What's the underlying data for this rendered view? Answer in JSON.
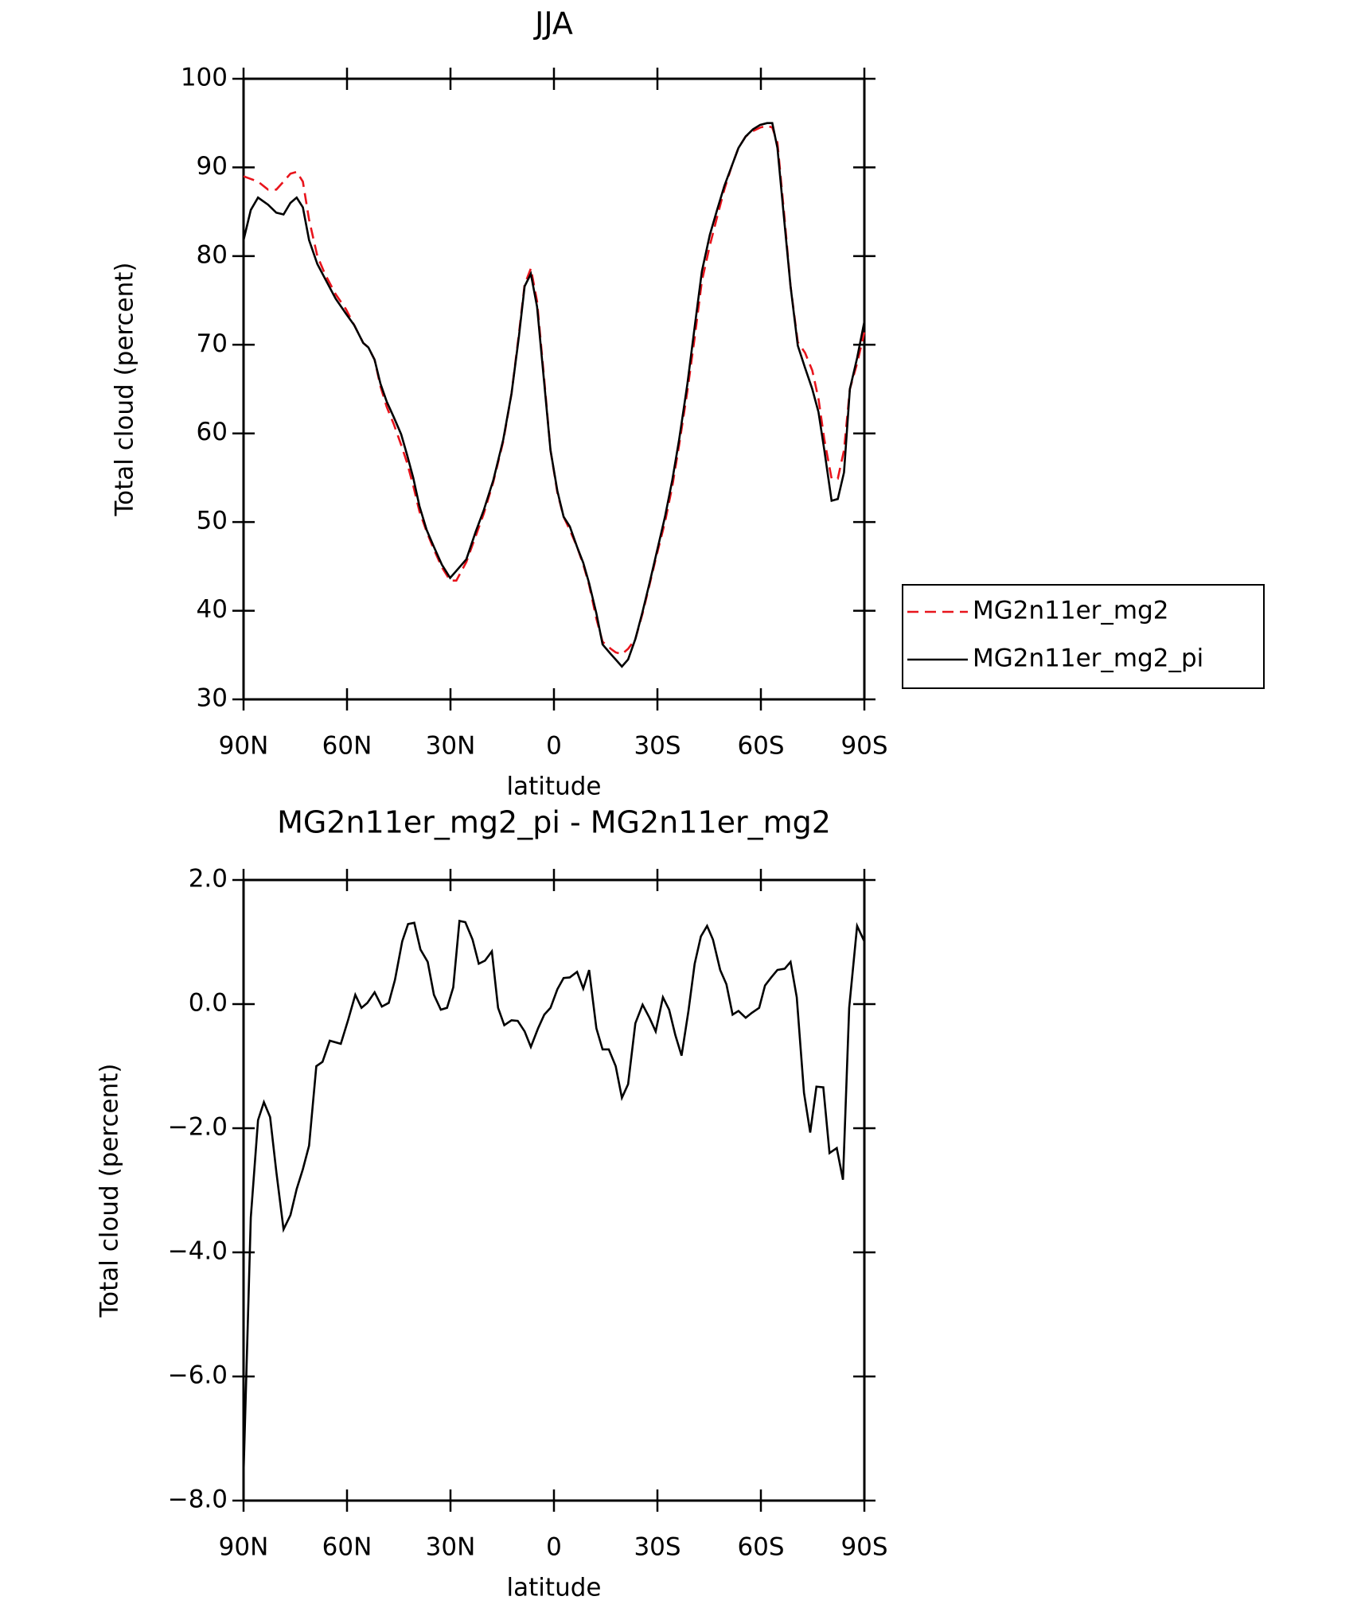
{
  "chart_data": [
    {
      "type": "line",
      "title": "JJA",
      "x_label": "latitude",
      "y_label": "Total cloud (percent)",
      "xlim": [
        90,
        -90
      ],
      "xticks": [
        {
          "value": 90,
          "label": "90N"
        },
        {
          "value": 60,
          "label": "60N"
        },
        {
          "value": 30,
          "label": "30N"
        },
        0,
        {
          "value": -30,
          "label": "30S"
        },
        {
          "value": -60,
          "label": "60S"
        },
        {
          "value": -90,
          "label": "90S"
        }
      ],
      "ylim": [
        30,
        100
      ],
      "yticks": [
        30,
        40,
        50,
        60,
        70,
        80,
        90,
        100
      ],
      "legend": "right",
      "x": [
        90,
        87.9,
        85.8,
        82.9,
        80.5,
        78.4,
        76.4,
        74.6,
        72.8,
        71.0,
        68.6,
        66.3,
        63.3,
        60.3,
        57.9,
        55.3,
        53.8,
        52.0,
        50.3,
        48.5,
        46.4,
        44.3,
        42.6,
        40.8,
        39.0,
        36.9,
        34.8,
        32.5,
        30.1,
        28.3,
        25.4,
        22.7,
        20.3,
        17.6,
        14.7,
        12.3,
        10.2,
        8.5,
        6.7,
        4.9,
        2.8,
        1.0,
        -1.0,
        -2.8,
        -4.6,
        -6.7,
        -8.5,
        -10.2,
        -12.3,
        -14.1,
        -16.5,
        -17.9,
        -19.7,
        -21.5,
        -23.6,
        -25.7,
        -27.7,
        -29.8,
        -32.2,
        -34.3,
        -36.3,
        -38.7,
        -40.8,
        -42.9,
        -45.2,
        -47.3,
        -49.4,
        -51.5,
        -53.5,
        -55.6,
        -57.7,
        -59.8,
        -61.8,
        -63.3,
        -64.8,
        -66.9,
        -68.6,
        -70.7,
        -72.8,
        -74.9,
        -76.7,
        -78.4,
        -80.5,
        -82.3,
        -84.1,
        -85.8,
        -87.9,
        -90
      ],
      "series": [
        {
          "name": "MG2n11er_mg2",
          "color": "#e8141c",
          "dashed": true,
          "values": [
            89.0,
            88.7,
            88.4,
            87.5,
            87.5,
            88.4,
            89.3,
            89.5,
            88.4,
            84.1,
            80.0,
            77.9,
            75.7,
            74.0,
            72.2,
            70.2,
            69.7,
            68.3,
            65.3,
            63.0,
            61.0,
            58.7,
            56.7,
            54.1,
            51.2,
            48.9,
            46.9,
            44.9,
            43.4,
            43.4,
            45.5,
            48.4,
            51.0,
            54.5,
            59.1,
            64.5,
            71.1,
            76.8,
            78.6,
            74.9,
            66.0,
            58.1,
            53.3,
            50.6,
            49.1,
            47.2,
            45.2,
            42.9,
            39.1,
            36.5,
            35.7,
            35.3,
            35.1,
            35.7,
            36.8,
            39.7,
            42.9,
            46.3,
            50.0,
            54.0,
            58.7,
            64.8,
            70.8,
            77.2,
            81.2,
            84.4,
            87.5,
            90.1,
            92.2,
            93.5,
            94.1,
            94.5,
            94.7,
            94.5,
            92.8,
            84.1,
            76.6,
            70.3,
            69.1,
            67.1,
            63.9,
            59.3,
            54.9,
            54.9,
            58.1,
            65.0,
            67.9,
            71.4
          ]
        },
        {
          "name": "MG2n11er_mg2_pi",
          "color": "#000000",
          "dashed": false,
          "values": [
            81.8,
            85.2,
            86.6,
            85.8,
            84.9,
            84.7,
            86.0,
            86.6,
            85.5,
            81.8,
            79.1,
            77.4,
            75.2,
            73.5,
            72.2,
            70.2,
            69.7,
            68.3,
            65.6,
            63.6,
            61.8,
            59.9,
            57.6,
            55.0,
            51.8,
            49.1,
            47.2,
            45.2,
            43.7,
            44.5,
            45.8,
            48.9,
            51.4,
            54.7,
            59.3,
            64.5,
            70.8,
            76.6,
            78.0,
            74.3,
            65.6,
            58.1,
            53.5,
            50.6,
            49.5,
            47.2,
            45.4,
            43.1,
            39.7,
            36.2,
            35.1,
            34.5,
            33.7,
            34.5,
            36.8,
            39.9,
            43.1,
            46.6,
            50.6,
            54.7,
            59.3,
            65.6,
            72.0,
            78.3,
            82.4,
            85.2,
            87.9,
            90.1,
            92.2,
            93.5,
            94.3,
            94.8,
            95.0,
            95.0,
            92.2,
            83.5,
            76.6,
            69.9,
            67.4,
            65.0,
            62.4,
            58.1,
            52.4,
            52.6,
            55.6,
            65.0,
            68.5,
            72.6
          ]
        }
      ]
    },
    {
      "type": "line",
      "title": "MG2n11er_mg2_pi - MG2n11er_mg2",
      "x_label": "latitude",
      "y_label": "Total cloud (percent)",
      "xlim": [
        90,
        -90
      ],
      "xticks": [
        {
          "value": 90,
          "label": "90N"
        },
        {
          "value": 60,
          "label": "60N"
        },
        {
          "value": 30,
          "label": "30N"
        },
        0,
        {
          "value": -30,
          "label": "30S"
        },
        {
          "value": -60,
          "label": "60S"
        },
        {
          "value": -90,
          "label": "90S"
        }
      ],
      "ylim": [
        -8,
        2
      ],
      "yticks": [
        {
          "value": -8,
          "label": "−8.0"
        },
        {
          "value": -6,
          "label": "−6.0"
        },
        {
          "value": -4,
          "label": "−4.0"
        },
        {
          "value": -2,
          "label": "−2.0"
        },
        {
          "value": 0,
          "label": "0.0"
        },
        {
          "value": 2,
          "label": "2.0"
        }
      ],
      "x": [
        90,
        87.9,
        85.8,
        84.1,
        82.3,
        80.5,
        78.4,
        76.4,
        74.6,
        72.8,
        71.0,
        68.9,
        67.1,
        65.0,
        61.8,
        59.7,
        57.6,
        55.8,
        54.1,
        52.0,
        49.9,
        47.9,
        46.1,
        44.0,
        42.3,
        40.5,
        38.7,
        36.6,
        34.8,
        32.8,
        31.0,
        29.2,
        27.4,
        25.7,
        23.6,
        21.8,
        20.0,
        18.0,
        16.2,
        14.4,
        12.3,
        10.5,
        8.5,
        6.7,
        4.6,
        2.8,
        1.0,
        -1.0,
        -2.8,
        -4.6,
        -6.7,
        -8.5,
        -10.2,
        -12.3,
        -14.1,
        -15.9,
        -17.9,
        -19.7,
        -21.5,
        -23.6,
        -25.7,
        -27.7,
        -29.5,
        -31.6,
        -33.4,
        -35.2,
        -37.0,
        -39.0,
        -40.8,
        -42.6,
        -44.4,
        -46.1,
        -48.2,
        -50.0,
        -51.8,
        -53.5,
        -55.6,
        -57.4,
        -59.5,
        -61.2,
        -63.0,
        -64.8,
        -66.9,
        -68.6,
        -70.4,
        -72.5,
        -74.3,
        -76.1,
        -78.1,
        -79.9,
        -82.0,
        -83.8,
        -85.6,
        -87.9,
        -90
      ],
      "series": [
        {
          "color": "#000000",
          "dashed": false,
          "values": [
            -7.56,
            -3.44,
            -1.87,
            -1.58,
            -1.82,
            -2.7,
            -3.63,
            -3.4,
            -2.98,
            -2.66,
            -2.28,
            -1.0,
            -0.93,
            -0.59,
            -0.64,
            -0.26,
            0.15,
            -0.06,
            0.02,
            0.19,
            -0.04,
            0.02,
            0.39,
            1.01,
            1.29,
            1.31,
            0.88,
            0.68,
            0.15,
            -0.09,
            -0.06,
            0.27,
            1.34,
            1.32,
            1.04,
            0.65,
            0.7,
            0.85,
            -0.06,
            -0.34,
            -0.26,
            -0.27,
            -0.44,
            -0.69,
            -0.39,
            -0.17,
            -0.06,
            0.24,
            0.42,
            0.43,
            0.52,
            0.25,
            0.55,
            -0.39,
            -0.73,
            -0.73,
            -1.0,
            -1.51,
            -1.29,
            -0.31,
            -0.01,
            -0.22,
            -0.44,
            0.11,
            -0.09,
            -0.5,
            -0.83,
            -0.11,
            0.65,
            1.09,
            1.26,
            1.04,
            0.55,
            0.32,
            -0.17,
            -0.11,
            -0.22,
            -0.14,
            -0.06,
            0.3,
            0.43,
            0.55,
            0.57,
            0.68,
            0.11,
            -1.43,
            -2.07,
            -1.33,
            -1.34,
            -2.4,
            -2.32,
            -2.83,
            -0.06,
            1.26,
            1.01
          ]
        }
      ]
    }
  ]
}
